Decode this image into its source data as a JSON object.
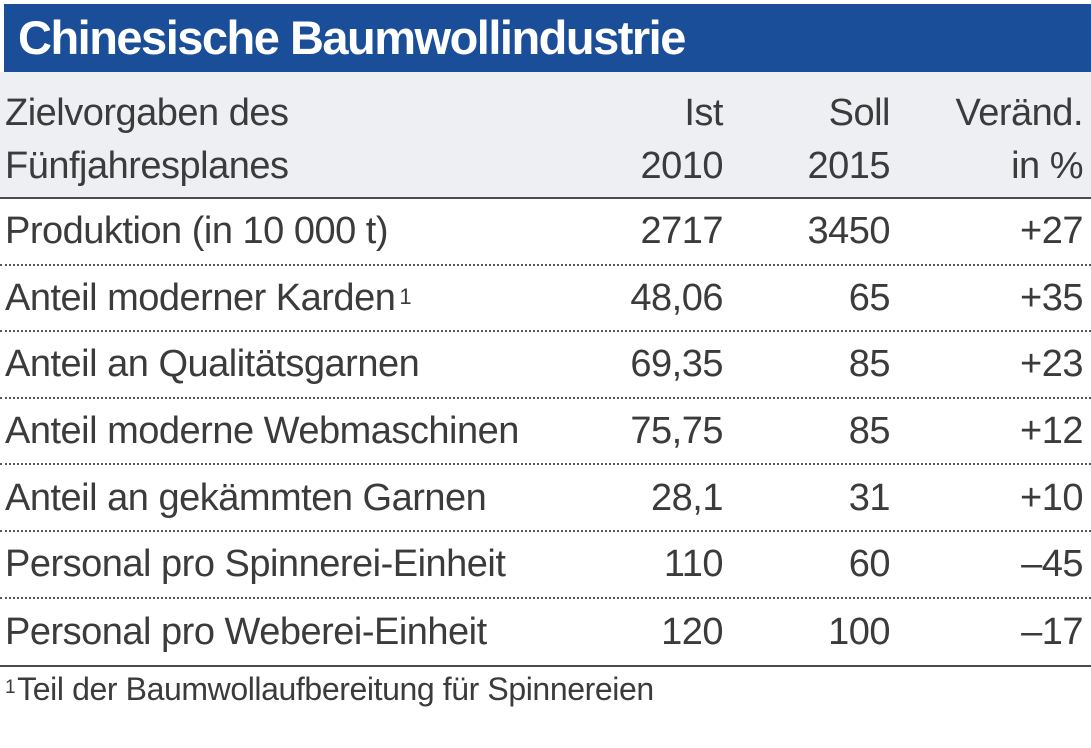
{
  "title": "Chinesische Baumwollindustrie",
  "colors": {
    "title_bar_blue": "#1b4e99",
    "header_band_gray": "#edeff2",
    "text": "#3b3b3c",
    "rule_line": "#4c4c4e"
  },
  "table": {
    "row_header": {
      "line1": "Zielvorgaben des",
      "line2": "Fünfjahresplanes"
    },
    "columns": [
      {
        "line1": "Ist",
        "line2": "2010"
      },
      {
        "line1": "Soll",
        "line2": "2015"
      },
      {
        "line1": "Veränd.",
        "line2": "in %"
      }
    ],
    "rows": [
      {
        "label": "Produktion (in 10 000 t)",
        "footnote_mark": "",
        "ist": "2717",
        "soll": "3450",
        "change": "+27"
      },
      {
        "label": "Anteil moderner Karden",
        "footnote_mark": "1",
        "ist": "48,06",
        "soll": "65",
        "change": "+35"
      },
      {
        "label": "Anteil an Qualitätsgarnen",
        "footnote_mark": "",
        "ist": "69,35",
        "soll": "85",
        "change": "+23"
      },
      {
        "label": "Anteil moderne Webmaschinen",
        "footnote_mark": "",
        "ist": "75,75",
        "soll": "85",
        "change": "+12"
      },
      {
        "label": "Anteil an gekämmten Garnen",
        "footnote_mark": "",
        "ist": "28,1",
        "soll": "31",
        "change": "+10"
      },
      {
        "label": "Personal pro Spinnerei-Einheit",
        "footnote_mark": "",
        "ist": "110",
        "soll": "60",
        "change": "–45"
      },
      {
        "label": "Personal pro Weberei-Einheit",
        "footnote_mark": "",
        "ist": "120",
        "soll": "100",
        "change": "–17"
      }
    ]
  },
  "footnote": {
    "mark": "1",
    "text": "Teil der Baumwollaufbereitung für Spinnereien"
  },
  "chart_data": {
    "type": "table",
    "title": "Chinesische Baumwollindustrie",
    "columns": [
      "Zielvorgaben des Fünfjahresplanes",
      "Ist 2010",
      "Soll 2015",
      "Veränd. in %"
    ],
    "rows": [
      [
        "Produktion (in 10 000 t)",
        2717,
        3450,
        27
      ],
      [
        "Anteil moderner Karden¹",
        48.06,
        65,
        35
      ],
      [
        "Anteil an Qualitätsgarnen",
        69.35,
        85,
        23
      ],
      [
        "Anteil moderne Webmaschinen",
        75.75,
        85,
        12
      ],
      [
        "Anteil an gekämmten Garnen",
        28.1,
        31,
        10
      ],
      [
        "Personal pro Spinnerei-Einheit",
        110,
        60,
        -45
      ],
      [
        "Personal pro Weberei-Einheit",
        120,
        100,
        -17
      ]
    ],
    "footnote": "¹ Teil der Baumwollaufbereitung für Spinnereien"
  }
}
